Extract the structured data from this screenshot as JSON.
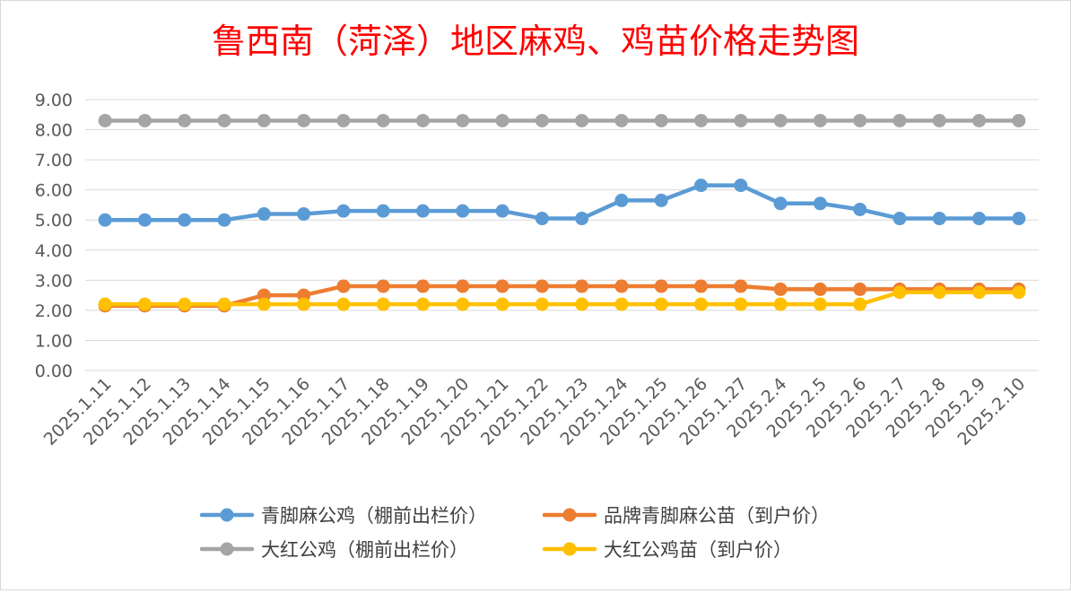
{
  "chart_data": {
    "type": "line",
    "title": "鲁西南（菏泽）地区麻鸡、鸡苗价格走势图",
    "title_color": "#ff0000",
    "xlabel": "",
    "ylabel": "",
    "ylim": [
      0,
      9
    ],
    "y_ticks": [
      "0.00",
      "1.00",
      "2.00",
      "3.00",
      "4.00",
      "5.00",
      "6.00",
      "7.00",
      "8.00",
      "9.00"
    ],
    "grid": true,
    "legend_position": "bottom",
    "categories": [
      "2025.1.11",
      "2025.1.12",
      "2025.1.13",
      "2025.1.14",
      "2025.1.15",
      "2025.1.16",
      "2025.1.17",
      "2025.1.18",
      "2025.1.19",
      "2025.1.20",
      "2025.1.21",
      "2025.1.22",
      "2025.1.23",
      "2025.1.24",
      "2025.1.25",
      "2025.1.26",
      "2025.1.27",
      "2025.2.4",
      "2025.2.5",
      "2025.2.6",
      "2025.2.7",
      "2025.2.8",
      "2025.2.9",
      "2025.2.10"
    ],
    "series": [
      {
        "name": "青脚麻公鸡（棚前出栏价）",
        "color": "#5b9bd5",
        "values": [
          5.0,
          5.0,
          5.0,
          5.0,
          5.2,
          5.2,
          5.3,
          5.3,
          5.3,
          5.3,
          5.3,
          5.05,
          5.05,
          5.65,
          5.65,
          6.15,
          6.15,
          5.55,
          5.55,
          5.35,
          5.05,
          5.05,
          5.05,
          5.05
        ]
      },
      {
        "name": "品牌青脚麻公苗（到户价）",
        "color": "#ed7d31",
        "values": [
          2.15,
          2.15,
          2.15,
          2.15,
          2.5,
          2.5,
          2.8,
          2.8,
          2.8,
          2.8,
          2.8,
          2.8,
          2.8,
          2.8,
          2.8,
          2.8,
          2.8,
          2.7,
          2.7,
          2.7,
          2.7,
          2.7,
          2.7,
          2.7
        ]
      },
      {
        "name": "大红公鸡（棚前出栏价）",
        "color": "#a5a5a5",
        "values": [
          8.3,
          8.3,
          8.3,
          8.3,
          8.3,
          8.3,
          8.3,
          8.3,
          8.3,
          8.3,
          8.3,
          8.3,
          8.3,
          8.3,
          8.3,
          8.3,
          8.3,
          8.3,
          8.3,
          8.3,
          8.3,
          8.3,
          8.3,
          8.3
        ]
      },
      {
        "name": "大红公鸡苗（到户价）",
        "color": "#ffc000",
        "values": [
          2.2,
          2.2,
          2.2,
          2.2,
          2.2,
          2.2,
          2.2,
          2.2,
          2.2,
          2.2,
          2.2,
          2.2,
          2.2,
          2.2,
          2.2,
          2.2,
          2.2,
          2.2,
          2.2,
          2.2,
          2.6,
          2.6,
          2.6,
          2.6
        ]
      }
    ]
  }
}
